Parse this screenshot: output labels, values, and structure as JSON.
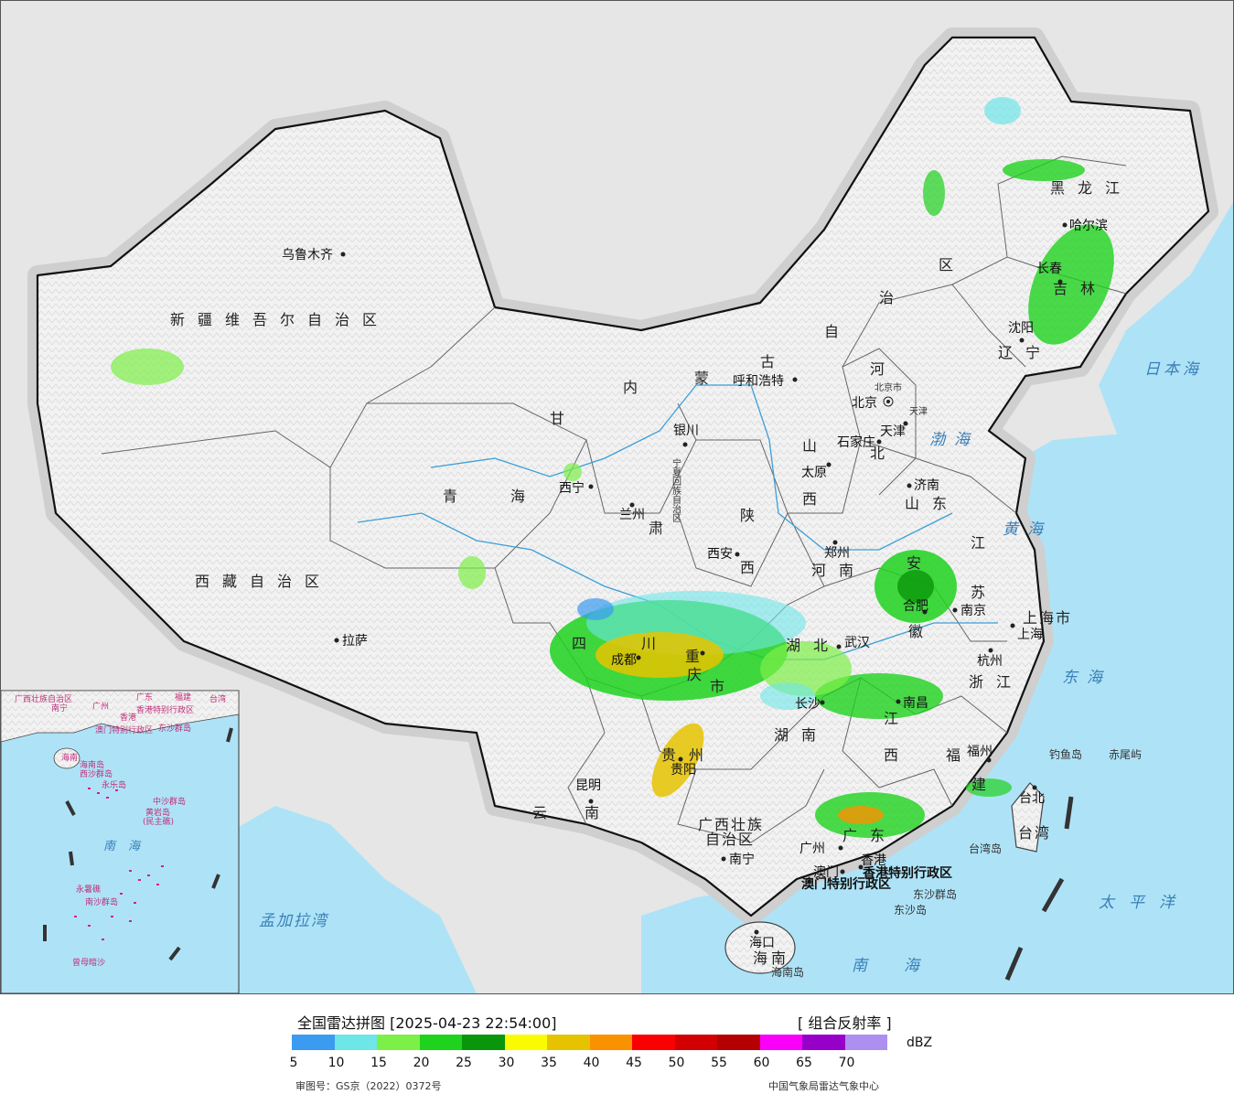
{
  "provinces": [
    {
      "id": "xinjiang",
      "label": "新疆维吾尔自治区"
    },
    {
      "id": "xizang",
      "label": "西藏自治区"
    },
    {
      "id": "qinghai1",
      "label": "青"
    },
    {
      "id": "qinghai2",
      "label": "海"
    },
    {
      "id": "gansu",
      "label": "甘"
    },
    {
      "id": "sichuan",
      "label": "四"
    },
    {
      "id": "sichuan2",
      "label": "川"
    },
    {
      "id": "yunnan",
      "label": "云"
    },
    {
      "id": "yunnan2",
      "label": "南"
    },
    {
      "id": "neimeng1",
      "label": "内"
    },
    {
      "id": "neimeng2",
      "label": "蒙"
    },
    {
      "id": "neimeng3",
      "label": "古"
    },
    {
      "id": "neimeng4",
      "label": "自"
    },
    {
      "id": "neimeng5",
      "label": "治"
    },
    {
      "id": "neimeng6",
      "label": "区"
    },
    {
      "id": "heilongjiang",
      "label": "黑龙江"
    },
    {
      "id": "jilin",
      "label": "吉林"
    },
    {
      "id": "liaoning",
      "label": "辽宁"
    },
    {
      "id": "hebei1",
      "label": "河"
    },
    {
      "id": "hebei2",
      "label": "北"
    },
    {
      "id": "shanxi1",
      "label": "山"
    },
    {
      "id": "shanxi2",
      "label": "西"
    },
    {
      "id": "shaanxi1",
      "label": "陕"
    },
    {
      "id": "shaanxi2",
      "label": "西"
    },
    {
      "id": "shandong",
      "label": "山东"
    },
    {
      "id": "henan",
      "label": "河南"
    },
    {
      "id": "jiangsu1",
      "label": "江"
    },
    {
      "id": "jiangsu2",
      "label": "苏"
    },
    {
      "id": "anhui1",
      "label": "安"
    },
    {
      "id": "anhui2",
      "label": "徽"
    },
    {
      "id": "hubei",
      "label": "湖北"
    },
    {
      "id": "hunan",
      "label": "湖南"
    },
    {
      "id": "jiangxi1",
      "label": "江"
    },
    {
      "id": "jiangxi2",
      "label": "西"
    },
    {
      "id": "zhejiang",
      "label": "浙江"
    },
    {
      "id": "fujian1",
      "label": "福"
    },
    {
      "id": "fujian2",
      "label": "建"
    },
    {
      "id": "guizhou",
      "label": "贵州"
    },
    {
      "id": "chongqing1",
      "label": "重"
    },
    {
      "id": "chongqing2",
      "label": "庆"
    },
    {
      "id": "chongqing3",
      "label": "市"
    },
    {
      "id": "gansu2",
      "label": "肃"
    },
    {
      "id": "guangxi1",
      "label": "广西壮族"
    },
    {
      "id": "guangxi2",
      "label": "自治区"
    },
    {
      "id": "guangdong",
      "label": "广东"
    },
    {
      "id": "hainan",
      "label": "海南"
    },
    {
      "id": "taiwan",
      "label": "台湾"
    },
    {
      "id": "shanghai",
      "label": "上海市"
    },
    {
      "id": "ningxia",
      "label": "宁夏回族自治区"
    },
    {
      "id": "hk",
      "label": "香港特别行政区"
    },
    {
      "id": "macau",
      "label": "澳门特别行政区"
    }
  ],
  "cities": [
    {
      "id": "urumqi",
      "label": "乌鲁木齐"
    },
    {
      "id": "lhasa",
      "label": "拉萨"
    },
    {
      "id": "xining",
      "label": "西宁"
    },
    {
      "id": "lanzhou",
      "label": "兰州"
    },
    {
      "id": "yinchuan",
      "label": "银川"
    },
    {
      "id": "hohhot",
      "label": "呼和浩特"
    },
    {
      "id": "beijing",
      "label": "北京"
    },
    {
      "id": "beijingshi",
      "label": "北京市"
    },
    {
      "id": "tianjin",
      "label": "天津"
    },
    {
      "id": "tianjinshi",
      "label": "天津"
    },
    {
      "id": "shijiazhuang",
      "label": "石家庄"
    },
    {
      "id": "taiyuan",
      "label": "太原"
    },
    {
      "id": "jinan",
      "label": "济南"
    },
    {
      "id": "zhengzhou",
      "label": "郑州"
    },
    {
      "id": "xian",
      "label": "西安"
    },
    {
      "id": "chengdu",
      "label": "成都"
    },
    {
      "id": "chongqing",
      "label": "重庆"
    },
    {
      "id": "wuhan",
      "label": "武汉"
    },
    {
      "id": "hefei",
      "label": "合肥"
    },
    {
      "id": "nanjing",
      "label": "南京"
    },
    {
      "id": "shanghai",
      "label": "上海"
    },
    {
      "id": "hangzhou",
      "label": "杭州"
    },
    {
      "id": "changsha",
      "label": "长沙"
    },
    {
      "id": "nanchang",
      "label": "南昌"
    },
    {
      "id": "fuzhou",
      "label": "福州"
    },
    {
      "id": "guiyang",
      "label": "贵阳"
    },
    {
      "id": "kunming",
      "label": "昆明"
    },
    {
      "id": "nanning",
      "label": "南宁"
    },
    {
      "id": "guangzhou",
      "label": "广州"
    },
    {
      "id": "macau",
      "label": "澳门"
    },
    {
      "id": "hongkong",
      "label": "香港"
    },
    {
      "id": "haikou",
      "label": "海口"
    },
    {
      "id": "taibei",
      "label": "台北"
    },
    {
      "id": "shenyang",
      "label": "沈阳"
    },
    {
      "id": "changchun",
      "label": "长春"
    },
    {
      "id": "harbin",
      "label": "哈尔滨"
    }
  ],
  "seas": [
    {
      "id": "bohai",
      "label": "渤海"
    },
    {
      "id": "huanghai",
      "label": "黄海"
    },
    {
      "id": "donghai",
      "label": "东海"
    },
    {
      "id": "nanhai",
      "label": "南海"
    },
    {
      "id": "riben",
      "label": "日本海"
    },
    {
      "id": "taipingyang",
      "label": "太平洋"
    },
    {
      "id": "mengjiala",
      "label": "孟加拉湾"
    },
    {
      "id": "inset_nanhai",
      "label": "南海"
    }
  ],
  "islands": [
    {
      "id": "diaoyu",
      "label": "钓鱼岛"
    },
    {
      "id": "chiwei",
      "label": "赤尾屿"
    },
    {
      "id": "dongsha_qd",
      "label": "东沙群岛"
    },
    {
      "id": "dongsha",
      "label": "东沙岛"
    },
    {
      "id": "taiwandao",
      "label": "台湾岛"
    },
    {
      "id": "hainandao",
      "label": "海南岛"
    }
  ],
  "inset_labels": [
    {
      "id": "i_gx",
      "label": "广西壮族自治区"
    },
    {
      "id": "i_gd",
      "label": "广东"
    },
    {
      "id": "i_fj",
      "label": "福建"
    },
    {
      "id": "i_tw",
      "label": "台湾"
    },
    {
      "id": "i_nn",
      "label": "南宁"
    },
    {
      "id": "i_gz",
      "label": "广州"
    },
    {
      "id": "i_hk",
      "label": "香港"
    },
    {
      "id": "i_hkspr",
      "label": "香港特别行政区"
    },
    {
      "id": "i_mac",
      "label": "澳门特别行政区"
    },
    {
      "id": "i_dsqd",
      "label": "东沙群岛"
    },
    {
      "id": "i_hn",
      "label": "海南"
    },
    {
      "id": "i_hnd",
      "label": "海南岛"
    },
    {
      "id": "i_xs",
      "label": "西沙群岛"
    },
    {
      "id": "i_yongle",
      "label": "永乐岛"
    },
    {
      "id": "i_zs",
      "label": "中沙群岛"
    },
    {
      "id": "i_hy",
      "label": "黄岩岛"
    },
    {
      "id": "i_mb",
      "label": "(民主礁)"
    },
    {
      "id": "i_yongshu",
      "label": "永暑礁"
    },
    {
      "id": "i_ns",
      "label": "南沙群岛"
    },
    {
      "id": "i_zm",
      "label": "曾母暗沙"
    }
  ],
  "legend": {
    "title": "全国雷达拼图 [2025-04-23 22:54:00]",
    "product": "[ 组合反射率 ]",
    "unit": "dBZ",
    "colors": [
      "#3a9bf0",
      "#6ee6e8",
      "#7df048",
      "#1ed21e",
      "#0a960a",
      "#fafa00",
      "#e6c300",
      "#fa9100",
      "#fa0000",
      "#d20000",
      "#b40000",
      "#fa00fa",
      "#9600c8",
      "#ad8fef"
    ],
    "ticks": [
      "5",
      "10",
      "15",
      "20",
      "25",
      "30",
      "35",
      "40",
      "45",
      "50",
      "55",
      "60",
      "65",
      "70"
    ],
    "approval": "审图号：GS京（2022）0372号",
    "source": "中国气象局雷达气象中心"
  }
}
